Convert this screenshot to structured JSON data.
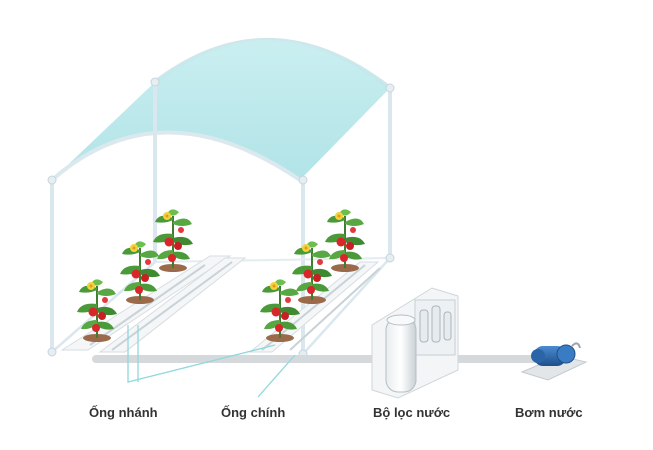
{
  "labels": {
    "branch_pipe": "Ống nhánh",
    "main_pipe": "Ống chính",
    "water_filter": "Bộ lọc nước",
    "water_pump": "Bơm nước"
  },
  "colors": {
    "canopy": "#aee3e6",
    "frame": "#dbe7ee",
    "pipe": "#d5d9dc",
    "leader_line": "#8fd9dc",
    "leaf": "#4a9a3a",
    "fruit": "#d9262b",
    "flower": "#f5d23c",
    "soil": "#9a6a4a",
    "pump": "#2f6fb5",
    "text": "#333333"
  },
  "icons": [
    "greenhouse-icon",
    "tomato-plant-icon",
    "water-filter-icon",
    "water-pump-icon"
  ]
}
